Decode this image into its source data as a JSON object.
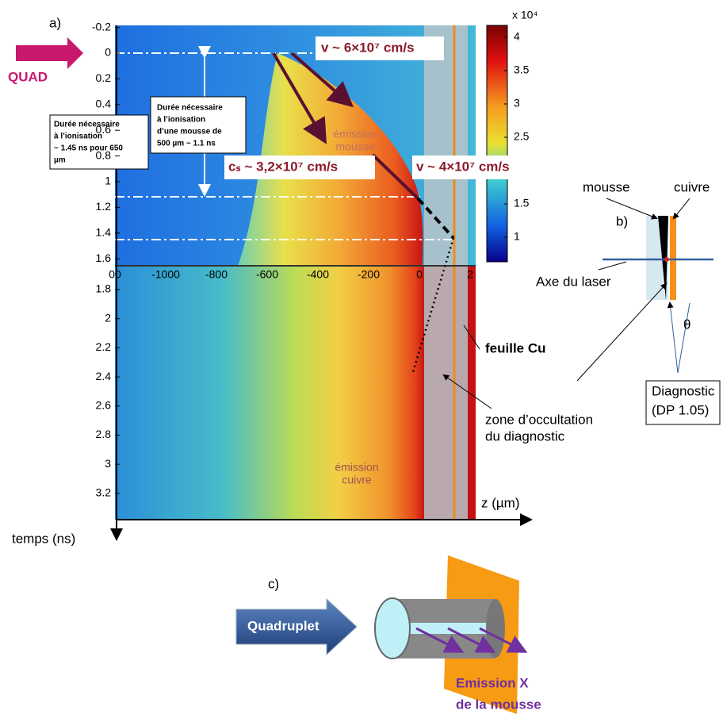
{
  "panel_a": {
    "label": "a)",
    "quad_label": "QUAD",
    "y_ticks_upper": [
      -0.2,
      0,
      0.2,
      0.4,
      0.6,
      0.8,
      1,
      1.2,
      1.4,
      1.6
    ],
    "y_ticks_lower": [
      1.8,
      2,
      2.2,
      2.4,
      2.6,
      2.8,
      3,
      3.2
    ],
    "x_ticks": [
      "00",
      "-1000",
      "-800",
      "-600",
      "-400",
      "-200",
      "0",
      "2"
    ],
    "colorbar": {
      "exponent": "x 10⁴",
      "ticks": [
        4,
        3.5,
        3,
        2.5,
        1.5,
        1
      ]
    },
    "annotations": {
      "v_front": "v ~ 6×10⁷ cm/s",
      "cs": "cₛ ~ 3,2×10⁷ cm/s",
      "v_rear": "v ~ 4×10⁷ cm/s",
      "emission_mousse": [
        "émission",
        "mousse"
      ],
      "emission_cuivre": [
        "émission",
        "cuivre"
      ],
      "foil": "feuille Cu",
      "occultation": [
        "zone d’occultation",
        "du diagnostic"
      ],
      "ionisation_650": [
        "Durée nécessaire",
        "à l’ionisation",
        "~ 1.45 ns pour 650",
        "µm"
      ],
      "ionisation_500": [
        "Durée nécessaire",
        "à l’ionisation",
        "d’une mousse de",
        "500 µm ~ 1.1 ns"
      ]
    },
    "x_axis_label": "z (µm)",
    "y_axis_label": "temps (ns)"
  },
  "panel_b": {
    "label": "b)",
    "foam": "mousse",
    "copper": "cuivre",
    "laser_axis": "Axe du laser",
    "angle": "θ",
    "diagnostic": [
      "Diagnostic",
      "(DP 1.05)"
    ]
  },
  "panel_c": {
    "label": "c)",
    "beam": "Quadruplet",
    "emission": [
      "Emission X",
      "de la mousse"
    ]
  }
}
